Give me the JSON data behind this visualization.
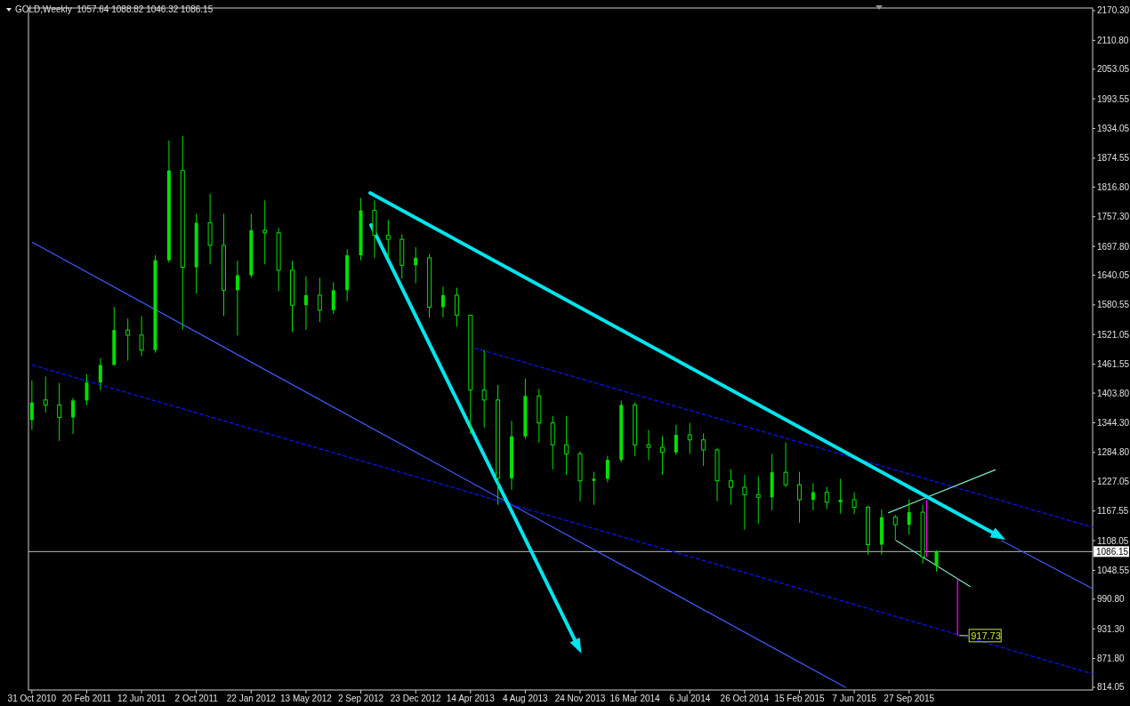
{
  "chart_data": {
    "type": "candlestick",
    "title": "GOLD,Weekly  1057.64 1088.82 1046.32 1086.15",
    "color": "#00e000",
    "x": [
      "2010-10-31",
      "2010-11-28",
      "2010-12-26",
      "2011-01-23",
      "2011-02-20",
      "2011-03-20",
      "2011-04-17",
      "2011-05-15",
      "2011-06-12",
      "2011-07-10",
      "2011-08-07",
      "2011-09-04",
      "2011-10-02",
      "2011-10-30",
      "2011-11-27",
      "2011-12-25",
      "2012-01-22",
      "2012-02-19",
      "2012-03-18",
      "2012-04-15",
      "2012-05-13",
      "2012-06-10",
      "2012-07-08",
      "2012-08-05",
      "2012-09-02",
      "2012-09-30",
      "2012-10-28",
      "2012-11-25",
      "2012-12-23",
      "2013-01-20",
      "2013-02-17",
      "2013-03-17",
      "2013-04-14",
      "2013-05-12",
      "2013-06-09",
      "2013-07-07",
      "2013-08-04",
      "2013-09-01",
      "2013-09-29",
      "2013-10-27",
      "2013-11-24",
      "2013-12-22",
      "2014-01-19",
      "2014-02-16",
      "2014-03-16",
      "2014-04-13",
      "2014-05-11",
      "2014-06-08",
      "2014-07-06",
      "2014-08-03",
      "2014-08-31",
      "2014-09-28",
      "2014-10-26",
      "2014-11-23",
      "2014-12-21",
      "2015-01-18",
      "2015-02-15",
      "2015-03-15",
      "2015-04-12",
      "2015-05-10",
      "2015-06-07",
      "2015-07-05",
      "2015-08-02",
      "2015-08-30",
      "2015-09-27",
      "2015-10-25",
      "2015-11-22"
    ],
    "ohlc": [
      [
        1350,
        1429,
        1330,
        1385
      ],
      [
        1390,
        1437,
        1365,
        1380
      ],
      [
        1380,
        1424,
        1308,
        1355
      ],
      [
        1355,
        1394,
        1322,
        1389
      ],
      [
        1389,
        1442,
        1380,
        1425
      ],
      [
        1425,
        1474,
        1410,
        1460
      ],
      [
        1460,
        1576,
        1460,
        1530
      ],
      [
        1530,
        1553,
        1469,
        1520
      ],
      [
        1520,
        1558,
        1478,
        1490
      ],
      [
        1490,
        1680,
        1485,
        1670
      ],
      [
        1670,
        1910,
        1665,
        1850
      ],
      [
        1850,
        1919,
        1531,
        1656
      ],
      [
        1656,
        1763,
        1603,
        1745
      ],
      [
        1745,
        1803,
        1662,
        1700
      ],
      [
        1700,
        1763,
        1558,
        1610
      ],
      [
        1610,
        1669,
        1519,
        1640
      ],
      [
        1640,
        1763,
        1635,
        1730
      ],
      [
        1730,
        1790,
        1662,
        1725
      ],
      [
        1725,
        1735,
        1608,
        1650
      ],
      [
        1650,
        1669,
        1526,
        1580
      ],
      [
        1580,
        1638,
        1531,
        1600
      ],
      [
        1600,
        1635,
        1546,
        1570
      ],
      [
        1570,
        1626,
        1562,
        1610
      ],
      [
        1610,
        1692,
        1588,
        1680
      ],
      [
        1680,
        1795,
        1670,
        1770
      ],
      [
        1770,
        1790,
        1674,
        1720
      ],
      [
        1720,
        1751,
        1674,
        1712
      ],
      [
        1712,
        1722,
        1633,
        1660
      ],
      [
        1660,
        1696,
        1624,
        1675
      ],
      [
        1675,
        1683,
        1555,
        1576
      ],
      [
        1576,
        1617,
        1555,
        1600
      ],
      [
        1600,
        1615,
        1537,
        1560
      ],
      [
        1560,
        1560,
        1322,
        1410
      ],
      [
        1410,
        1490,
        1335,
        1390
      ],
      [
        1390,
        1420,
        1180,
        1233
      ],
      [
        1233,
        1348,
        1210,
        1317
      ],
      [
        1317,
        1433,
        1312,
        1398
      ],
      [
        1398,
        1412,
        1305,
        1344
      ],
      [
        1344,
        1358,
        1251,
        1300
      ],
      [
        1300,
        1358,
        1240,
        1282
      ],
      [
        1282,
        1287,
        1187,
        1228
      ],
      [
        1228,
        1246,
        1180,
        1232
      ],
      [
        1232,
        1278,
        1225,
        1270
      ],
      [
        1270,
        1389,
        1265,
        1380
      ],
      [
        1380,
        1385,
        1278,
        1300
      ],
      [
        1300,
        1330,
        1269,
        1295
      ],
      [
        1295,
        1317,
        1240,
        1285
      ],
      [
        1285,
        1340,
        1280,
        1320
      ],
      [
        1320,
        1344,
        1282,
        1310
      ],
      [
        1310,
        1323,
        1258,
        1290
      ],
      [
        1290,
        1294,
        1187,
        1228
      ],
      [
        1228,
        1251,
        1180,
        1215
      ],
      [
        1215,
        1240,
        1130,
        1200
      ],
      [
        1200,
        1237,
        1142,
        1195
      ],
      [
        1195,
        1282,
        1169,
        1245
      ],
      [
        1245,
        1305,
        1215,
        1220
      ],
      [
        1220,
        1246,
        1144,
        1190
      ],
      [
        1190,
        1223,
        1169,
        1205
      ],
      [
        1205,
        1216,
        1171,
        1185
      ],
      [
        1185,
        1232,
        1162,
        1190
      ],
      [
        1190,
        1205,
        1162,
        1175
      ],
      [
        1175,
        1178,
        1080,
        1100
      ],
      [
        1100,
        1171,
        1080,
        1155
      ],
      [
        1155,
        1160,
        1108,
        1140
      ],
      [
        1140,
        1191,
        1120,
        1165
      ],
      [
        1165,
        1180,
        1062,
        1075
      ],
      [
        1057.64,
        1088.82,
        1046.32,
        1086.15
      ]
    ],
    "series": [
      {
        "type": "line",
        "color": "#3d5cff",
        "x": [
          "2010-11-01",
          "2015-05-20"
        ],
        "values": [
          1706,
          814
        ]
      },
      {
        "type": "line",
        "color": "#3d5cff",
        "x": [
          "2016-04-03",
          "2016-10-06"
        ],
        "values": [
          1108,
          1012
        ]
      },
      {
        "type": "line",
        "color": "#0a14ff",
        "line_style": "dashed",
        "x": [
          "2013-04-23",
          "2016-10-06"
        ],
        "values": [
          1494,
          1135
        ]
      },
      {
        "type": "line",
        "color": "#0a14ff",
        "line_style": "dashed",
        "x": [
          "2010-11-01",
          "2016-10-06"
        ],
        "values": [
          1460,
          841
        ]
      },
      {
        "type": "line",
        "color": "#7fe8c8",
        "x": [
          "2015-08-16",
          "2016-03-21"
        ],
        "values": [
          1164,
          1250
        ]
      },
      {
        "type": "line",
        "color": "#7fe8c8",
        "x": [
          "2015-09-01",
          "2016-01-30"
        ],
        "values": [
          1108,
          1016
        ]
      },
      {
        "type": "line",
        "color": "#ff00ff",
        "x": [
          "2015-11-02",
          "2015-11-02"
        ],
        "values": [
          1189,
          1076
        ]
      },
      {
        "type": "line",
        "color": "#ff00ff",
        "x": [
          "2016-01-04",
          "2016-01-04"
        ],
        "values": [
          1032,
          917.73
        ]
      }
    ],
    "ref_lines": [
      {
        "axis": "y",
        "value": 1086.15,
        "label": "1086.15",
        "color": "#c0c0c0"
      }
    ],
    "annotations": [
      {
        "text": "917.73",
        "x": "2016-01-04",
        "y": 917.73
      }
    ],
    "xlim": [
      "2010-10-24",
      "2016-10-06"
    ],
    "ylim": [
      808.7,
      2175.6
    ],
    "xticks": [
      {
        "value": "2010-10-31",
        "label": "31 Oct 2010"
      },
      {
        "value": "2011-02-20",
        "label": "20 Feb 2011"
      },
      {
        "value": "2011-06-12",
        "label": "12 Jun 2011"
      },
      {
        "value": "2011-10-02",
        "label": "2 Oct 2011"
      },
      {
        "value": "2012-01-22",
        "label": "22 Jan 2012"
      },
      {
        "value": "2012-05-13",
        "label": "13 May 2012"
      },
      {
        "value": "2012-09-02",
        "label": "2 Sep 2012"
      },
      {
        "value": "2012-12-23",
        "label": "23 Dec 2012"
      },
      {
        "value": "2013-04-14",
        "label": "14 Apr 2013"
      },
      {
        "value": "2013-08-04",
        "label": "4 Aug 2013"
      },
      {
        "value": "2013-11-24",
        "label": "24 Nov 2013"
      },
      {
        "value": "2014-03-16",
        "label": "16 Mar 2014"
      },
      {
        "value": "2014-07-06",
        "label": "6 Jul 2014"
      },
      {
        "value": "2014-10-26",
        "label": "26 Oct 2014"
      },
      {
        "value": "2015-02-15",
        "label": "15 Feb 2015"
      },
      {
        "value": "2015-06-07",
        "label": "7 Jun 2015"
      },
      {
        "value": "2015-09-27",
        "label": "27 Sep 2015"
      }
    ],
    "yticks": [
      {
        "value": 2170.3,
        "label": "2170.30"
      },
      {
        "value": 2110.8,
        "label": "2110.80"
      },
      2053.05,
      1993.55,
      1934.05,
      1874.55,
      {
        "value": 1816.8,
        "label": "1816.80"
      },
      {
        "value": 1757.3,
        "label": "1757.30"
      },
      {
        "value": 1697.8,
        "label": "1697.80"
      },
      1640.05,
      1580.55,
      1521.05,
      1461.55,
      {
        "value": 1403.8,
        "label": "1403.80"
      },
      {
        "value": 1344.3,
        "label": "1344.30"
      },
      {
        "value": 1284.8,
        "label": "1284.80"
      },
      1227.05,
      1167.55,
      1108.05,
      1048.55,
      {
        "value": 990.8,
        "label": "990.80"
      },
      {
        "value": 931.3,
        "label": "931.30"
      },
      {
        "value": 871.8,
        "label": "871.80"
      },
      814.05
    ]
  }
}
